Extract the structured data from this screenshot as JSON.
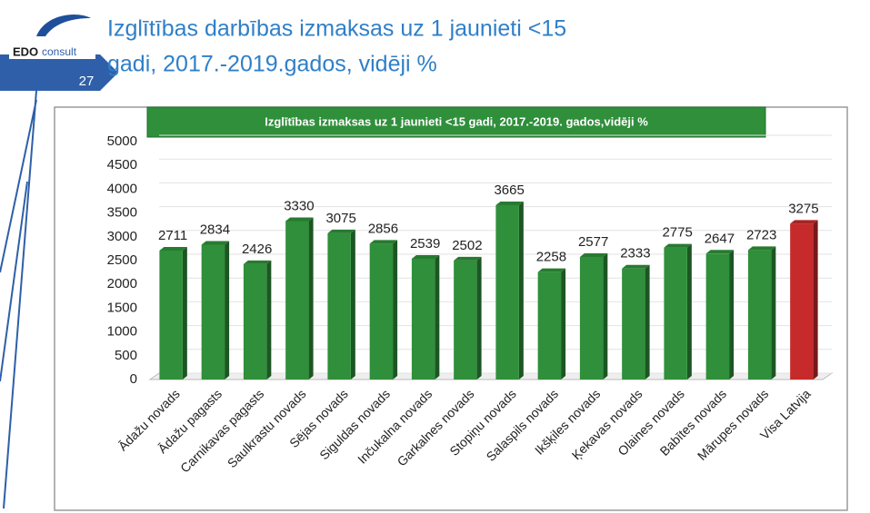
{
  "slide": {
    "title": [
      "Izglītības darbības izmaksas uz 1 jaunieti <15",
      "gadi, 2017.-2019.gados, vidēji  %"
    ],
    "logo": "EDO",
    "logo_sub": "consult",
    "page_number": "27"
  },
  "chart_data": {
    "type": "bar",
    "title": "Izglītības izmaksas uz 1 jaunieti <15 gadi, 2017.-2019. gados,vidēji %",
    "categories": [
      "Ādažu novads",
      "Ādažu pagasts",
      "Carnikavas pagasts",
      "Saulkrastu novads",
      "Sējas novads",
      "Siguldas novads",
      "Inčukalna novads",
      "Garkalnes novads",
      "Stopiņu novads",
      "Salaspils novads",
      "Ikšķiles novads",
      "Ķekavas novads",
      "Olaines novads",
      "Babītes novads",
      "Mārupes novads",
      "Visa Latvija"
    ],
    "values": [
      2711,
      2834,
      2426,
      3330,
      3075,
      2856,
      2539,
      2502,
      3665,
      2258,
      2577,
      2333,
      2775,
      2647,
      2723,
      3275
    ],
    "colors": [
      "#2f8f3a",
      "#2f8f3a",
      "#2f8f3a",
      "#2f8f3a",
      "#2f8f3a",
      "#2f8f3a",
      "#2f8f3a",
      "#2f8f3a",
      "#2f8f3a",
      "#2f8f3a",
      "#2f8f3a",
      "#2f8f3a",
      "#2f8f3a",
      "#2f8f3a",
      "#2f8f3a",
      "#c62a2a"
    ],
    "ylim": [
      0,
      5000
    ],
    "yticks": [
      0,
      500,
      1000,
      1500,
      2000,
      2500,
      3000,
      3500,
      4000,
      4500,
      5000
    ],
    "grid": true
  }
}
